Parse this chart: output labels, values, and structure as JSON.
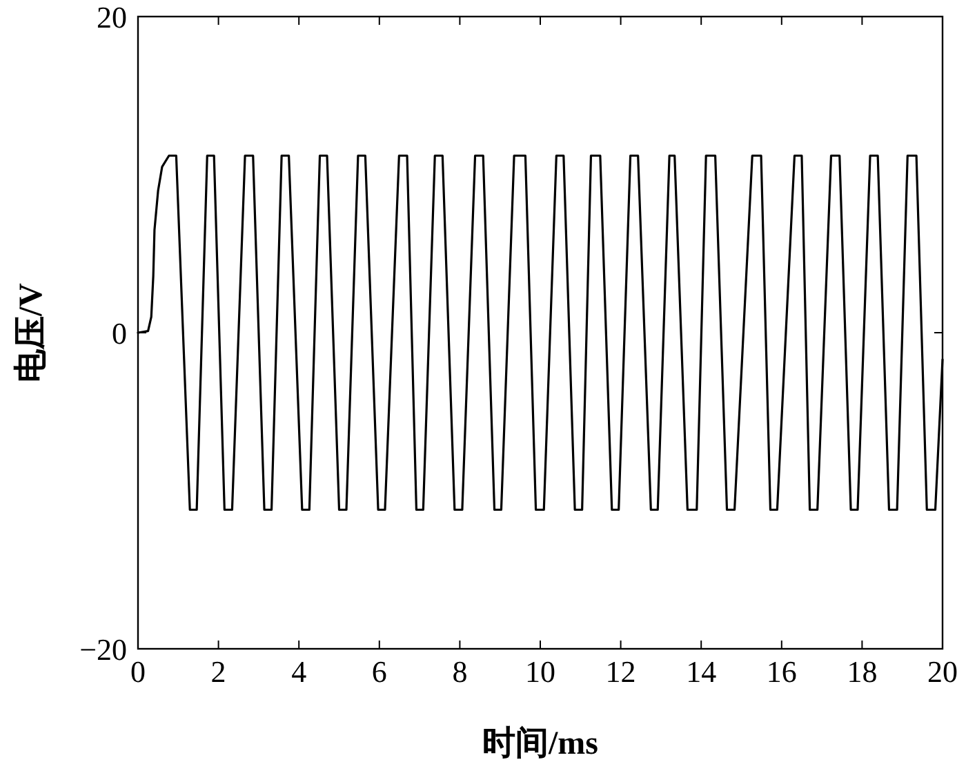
{
  "chart_data": {
    "type": "line",
    "xlabel": "时间/ms",
    "ylabel": "电压/V",
    "xlim": [
      0,
      20
    ],
    "ylim": [
      -20,
      20
    ],
    "xticks": [
      0,
      2,
      4,
      6,
      8,
      10,
      12,
      14,
      16,
      18,
      20
    ],
    "yticks": [
      -20,
      0,
      20
    ],
    "grid": false,
    "marker": "none",
    "line_style": "solid",
    "series": [
      {
        "color": "#000000",
        "x": [
          0,
          0.25,
          0.33,
          0.38,
          0.41,
          0.5,
          0.6,
          0.77,
          0.95,
          1.29,
          1.46,
          1.72,
          1.89,
          2.15,
          2.34,
          2.66,
          2.86,
          3.14,
          3.32,
          3.57,
          3.75,
          4.08,
          4.26,
          4.52,
          4.7,
          5.0,
          5.18,
          5.47,
          5.65,
          5.97,
          6.14,
          6.49,
          6.69,
          6.92,
          7.09,
          7.38,
          7.57,
          7.87,
          8.06,
          8.38,
          8.58,
          8.86,
          9.03,
          9.35,
          9.63,
          9.89,
          10.09,
          10.4,
          10.58,
          10.86,
          11.04,
          11.26,
          11.49,
          11.78,
          11.95,
          12.24,
          12.43,
          12.75,
          12.92,
          13.21,
          13.34,
          13.66,
          13.89,
          14.12,
          14.35,
          14.64,
          14.83,
          15.27,
          15.49,
          15.72,
          15.89,
          16.32,
          16.5,
          16.7,
          16.89,
          17.23,
          17.44,
          17.72,
          17.89,
          18.2,
          18.39,
          18.67,
          18.87,
          19.13,
          19.35,
          19.61,
          19.82,
          20
        ],
        "values": [
          0,
          0.1,
          1,
          3.6,
          6.5,
          9,
          10.5,
          11.2,
          11.2,
          -11.2,
          -11.2,
          11.2,
          11.2,
          -11.2,
          -11.2,
          11.2,
          11.2,
          -11.2,
          -11.2,
          11.2,
          11.2,
          -11.2,
          -11.2,
          11.2,
          11.2,
          -11.2,
          -11.2,
          11.2,
          11.2,
          -11.2,
          -11.2,
          11.2,
          11.2,
          -11.2,
          -11.2,
          11.2,
          11.2,
          -11.2,
          -11.2,
          11.2,
          11.2,
          -11.2,
          -11.2,
          11.2,
          11.2,
          -11.2,
          -11.2,
          11.2,
          11.2,
          -11.2,
          -11.2,
          11.2,
          11.2,
          -11.2,
          -11.2,
          11.2,
          11.2,
          -11.2,
          -11.2,
          11.2,
          11.2,
          -11.2,
          -11.2,
          11.2,
          11.2,
          -11.2,
          -11.2,
          11.2,
          11.2,
          -11.2,
          -11.2,
          11.2,
          11.2,
          -11.2,
          -11.2,
          11.2,
          11.2,
          -11.2,
          -11.2,
          11.2,
          11.2,
          -11.2,
          -11.2,
          11.2,
          11.2,
          -11.2,
          -11.2,
          -1.7
        ]
      }
    ]
  }
}
